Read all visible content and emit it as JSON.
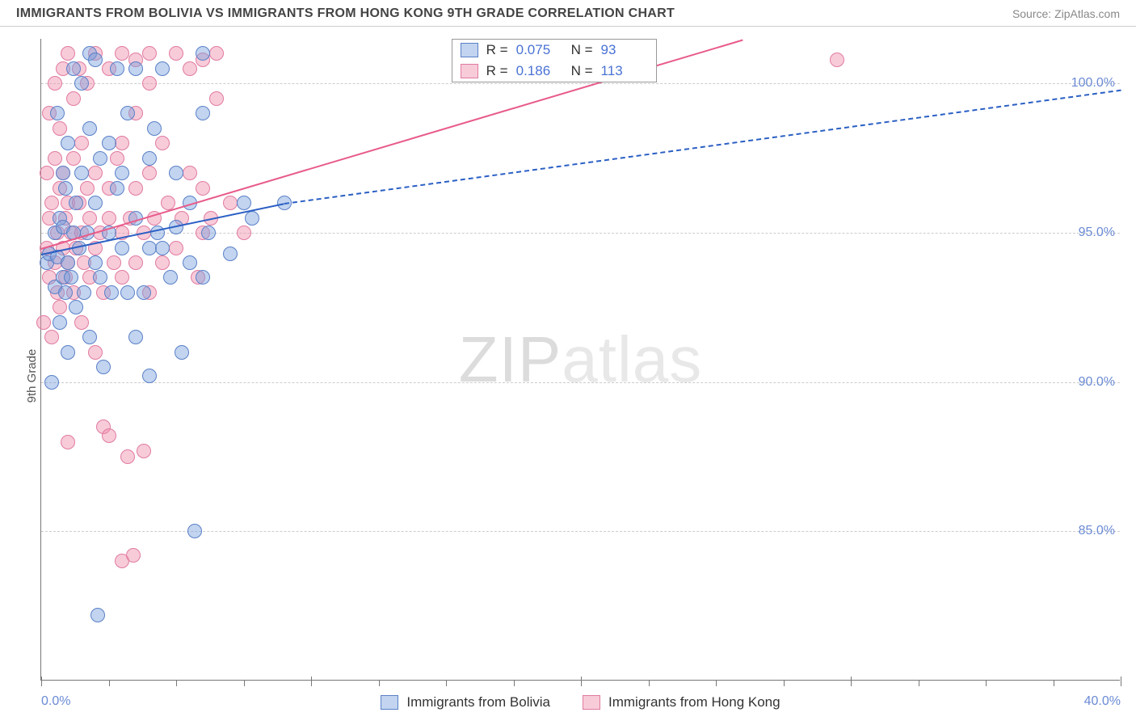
{
  "header": {
    "title": "IMMIGRANTS FROM BOLIVIA VS IMMIGRANTS FROM HONG KONG 9TH GRADE CORRELATION CHART",
    "source": "Source: ZipAtlas.com"
  },
  "chart": {
    "type": "scatter",
    "ylabel": "9th Grade",
    "watermark": {
      "prefix": "ZIP",
      "suffix": "atlas"
    },
    "background_color": "#ffffff",
    "grid_color": "#cccccc",
    "axis_color": "#777777",
    "ytick_color": "#6b8bd4",
    "xlim": [
      0.0,
      40.0
    ],
    "ylim": [
      80.0,
      101.5
    ],
    "yticks": [
      {
        "v": 85.0,
        "label": "85.0%"
      },
      {
        "v": 90.0,
        "label": "90.0%"
      },
      {
        "v": 95.0,
        "label": "95.0%"
      },
      {
        "v": 100.0,
        "label": "100.0%"
      }
    ],
    "xticks_major": [
      0.0,
      10.0,
      20.0,
      30.0,
      40.0
    ],
    "xticks_minor": [
      2.5,
      5.0,
      7.5,
      12.5,
      15.0,
      17.5,
      22.5,
      25.0,
      27.5,
      32.5,
      35.0,
      37.5
    ],
    "xtick_labels": [
      {
        "v": 0.0,
        "label": "0.0%"
      },
      {
        "v": 40.0,
        "label": "40.0%"
      }
    ],
    "series": {
      "bolivia": {
        "name": "Immigrants from Bolivia",
        "fill": "rgba(120,160,220,0.45)",
        "stroke": "#5a80c8",
        "line_color": "#2b5fc4",
        "line_dash_color": "#2b5fc4",
        "r_label": "R =",
        "r": "0.075",
        "n_label": "N =",
        "n": "93",
        "marker_size": 18,
        "points": [
          [
            0.2,
            94.0
          ],
          [
            0.3,
            94.3
          ],
          [
            0.4,
            90.0
          ],
          [
            0.5,
            93.2
          ],
          [
            0.5,
            95.0
          ],
          [
            0.6,
            94.2
          ],
          [
            0.6,
            99.0
          ],
          [
            0.7,
            92.0
          ],
          [
            0.7,
            95.5
          ],
          [
            0.8,
            93.5
          ],
          [
            0.8,
            95.2
          ],
          [
            0.8,
            97.0
          ],
          [
            0.9,
            93.0
          ],
          [
            0.9,
            96.5
          ],
          [
            1.0,
            91.0
          ],
          [
            1.0,
            94.0
          ],
          [
            1.0,
            98.0
          ],
          [
            1.1,
            93.5
          ],
          [
            1.2,
            95.0
          ],
          [
            1.2,
            100.5
          ],
          [
            1.3,
            92.5
          ],
          [
            1.3,
            96.0
          ],
          [
            1.4,
            94.5
          ],
          [
            1.5,
            97.0
          ],
          [
            1.5,
            100.0
          ],
          [
            1.6,
            93.0
          ],
          [
            1.7,
            95.0
          ],
          [
            1.8,
            91.5
          ],
          [
            1.8,
            98.5
          ],
          [
            1.8,
            101.0
          ],
          [
            2.0,
            94.0
          ],
          [
            2.0,
            96.0
          ],
          [
            2.0,
            100.8
          ],
          [
            2.1,
            82.2
          ],
          [
            2.2,
            93.5
          ],
          [
            2.2,
            97.5
          ],
          [
            2.3,
            90.5
          ],
          [
            2.5,
            95.0
          ],
          [
            2.5,
            98.0
          ],
          [
            2.6,
            93.0
          ],
          [
            2.8,
            96.5
          ],
          [
            2.8,
            100.5
          ],
          [
            3.0,
            94.5
          ],
          [
            3.0,
            97.0
          ],
          [
            3.2,
            93.0
          ],
          [
            3.2,
            99.0
          ],
          [
            3.5,
            91.5
          ],
          [
            3.5,
            95.5
          ],
          [
            3.5,
            100.5
          ],
          [
            3.8,
            93.0
          ],
          [
            4.0,
            94.5
          ],
          [
            4.0,
            97.5
          ],
          [
            4.0,
            90.2
          ],
          [
            4.2,
            98.5
          ],
          [
            4.3,
            95.0
          ],
          [
            4.5,
            94.5
          ],
          [
            4.5,
            100.5
          ],
          [
            4.8,
            93.5
          ],
          [
            5.0,
            95.2
          ],
          [
            5.0,
            97.0
          ],
          [
            5.2,
            91.0
          ],
          [
            5.5,
            94.0
          ],
          [
            5.5,
            96.0
          ],
          [
            5.7,
            85.0
          ],
          [
            6.0,
            99.0
          ],
          [
            6.0,
            93.5
          ],
          [
            6.0,
            101.0
          ],
          [
            6.2,
            95.0
          ],
          [
            7.0,
            94.3
          ],
          [
            7.5,
            96.0
          ],
          [
            7.8,
            95.5
          ],
          [
            9.0,
            96.0
          ]
        ],
        "trend": {
          "x1": 0.0,
          "y1": 94.3,
          "x2": 9.0,
          "y2": 96.0,
          "dash_to_x": 40.0,
          "dash_to_y": 99.8
        }
      },
      "hongkong": {
        "name": "Immigrants from Hong Kong",
        "fill": "rgba(240,140,170,0.45)",
        "stroke": "#e07ba0",
        "line_color": "#e85b8a",
        "r_label": "R =",
        "r": "0.186",
        "n_label": "N =",
        "n": "113",
        "marker_size": 18,
        "points": [
          [
            0.1,
            92.0
          ],
          [
            0.2,
            94.5
          ],
          [
            0.2,
            97.0
          ],
          [
            0.3,
            93.5
          ],
          [
            0.3,
            95.5
          ],
          [
            0.3,
            99.0
          ],
          [
            0.4,
            91.5
          ],
          [
            0.4,
            96.0
          ],
          [
            0.5,
            94.0
          ],
          [
            0.5,
            97.5
          ],
          [
            0.5,
            100.0
          ],
          [
            0.6,
            93.0
          ],
          [
            0.6,
            95.0
          ],
          [
            0.7,
            92.5
          ],
          [
            0.7,
            96.5
          ],
          [
            0.7,
            98.5
          ],
          [
            0.8,
            94.5
          ],
          [
            0.8,
            97.0
          ],
          [
            0.8,
            100.5
          ],
          [
            0.9,
            93.5
          ],
          [
            0.9,
            95.5
          ],
          [
            1.0,
            88.0
          ],
          [
            1.0,
            94.0
          ],
          [
            1.0,
            96.0
          ],
          [
            1.0,
            101.0
          ],
          [
            1.1,
            95.0
          ],
          [
            1.2,
            93.0
          ],
          [
            1.2,
            97.5
          ],
          [
            1.2,
            99.5
          ],
          [
            1.3,
            94.5
          ],
          [
            1.4,
            96.0
          ],
          [
            1.4,
            100.5
          ],
          [
            1.5,
            92.0
          ],
          [
            1.5,
            95.0
          ],
          [
            1.5,
            98.0
          ],
          [
            1.6,
            94.0
          ],
          [
            1.7,
            96.5
          ],
          [
            1.7,
            100.0
          ],
          [
            1.8,
            93.5
          ],
          [
            1.8,
            95.5
          ],
          [
            2.0,
            91.0
          ],
          [
            2.0,
            94.5
          ],
          [
            2.0,
            97.0
          ],
          [
            2.0,
            101.0
          ],
          [
            2.2,
            95.0
          ],
          [
            2.3,
            88.5
          ],
          [
            2.3,
            93.0
          ],
          [
            2.5,
            88.2
          ],
          [
            2.5,
            95.5
          ],
          [
            2.5,
            96.5
          ],
          [
            2.5,
            100.5
          ],
          [
            2.7,
            94.0
          ],
          [
            2.8,
            97.5
          ],
          [
            3.0,
            84.0
          ],
          [
            3.0,
            93.5
          ],
          [
            3.0,
            95.0
          ],
          [
            3.0,
            98.0
          ],
          [
            3.0,
            101.0
          ],
          [
            3.2,
            87.5
          ],
          [
            3.3,
            95.5
          ],
          [
            3.4,
            84.2
          ],
          [
            3.5,
            94.0
          ],
          [
            3.5,
            96.5
          ],
          [
            3.5,
            99.0
          ],
          [
            3.5,
            100.8
          ],
          [
            3.8,
            87.7
          ],
          [
            3.8,
            95.0
          ],
          [
            4.0,
            93.0
          ],
          [
            4.0,
            97.0
          ],
          [
            4.0,
            100.0
          ],
          [
            4.0,
            101.0
          ],
          [
            4.2,
            95.5
          ],
          [
            4.5,
            94.0
          ],
          [
            4.5,
            98.0
          ],
          [
            4.7,
            96.0
          ],
          [
            5.0,
            94.5
          ],
          [
            5.0,
            101.0
          ],
          [
            5.2,
            95.5
          ],
          [
            5.5,
            97.0
          ],
          [
            5.5,
            100.5
          ],
          [
            5.8,
            93.5
          ],
          [
            6.0,
            95.0
          ],
          [
            6.0,
            96.5
          ],
          [
            6.0,
            100.8
          ],
          [
            6.3,
            95.5
          ],
          [
            6.5,
            99.5
          ],
          [
            6.5,
            101.0
          ],
          [
            7.0,
            96.0
          ],
          [
            7.5,
            95.0
          ],
          [
            29.5,
            100.8
          ]
        ],
        "trend": {
          "x1": 0.0,
          "y1": 94.5,
          "x2": 26.0,
          "y2": 101.5
        }
      }
    },
    "stats_box": {
      "left_pct": 38,
      "top_pct": 0
    },
    "legend_bottom": true
  }
}
